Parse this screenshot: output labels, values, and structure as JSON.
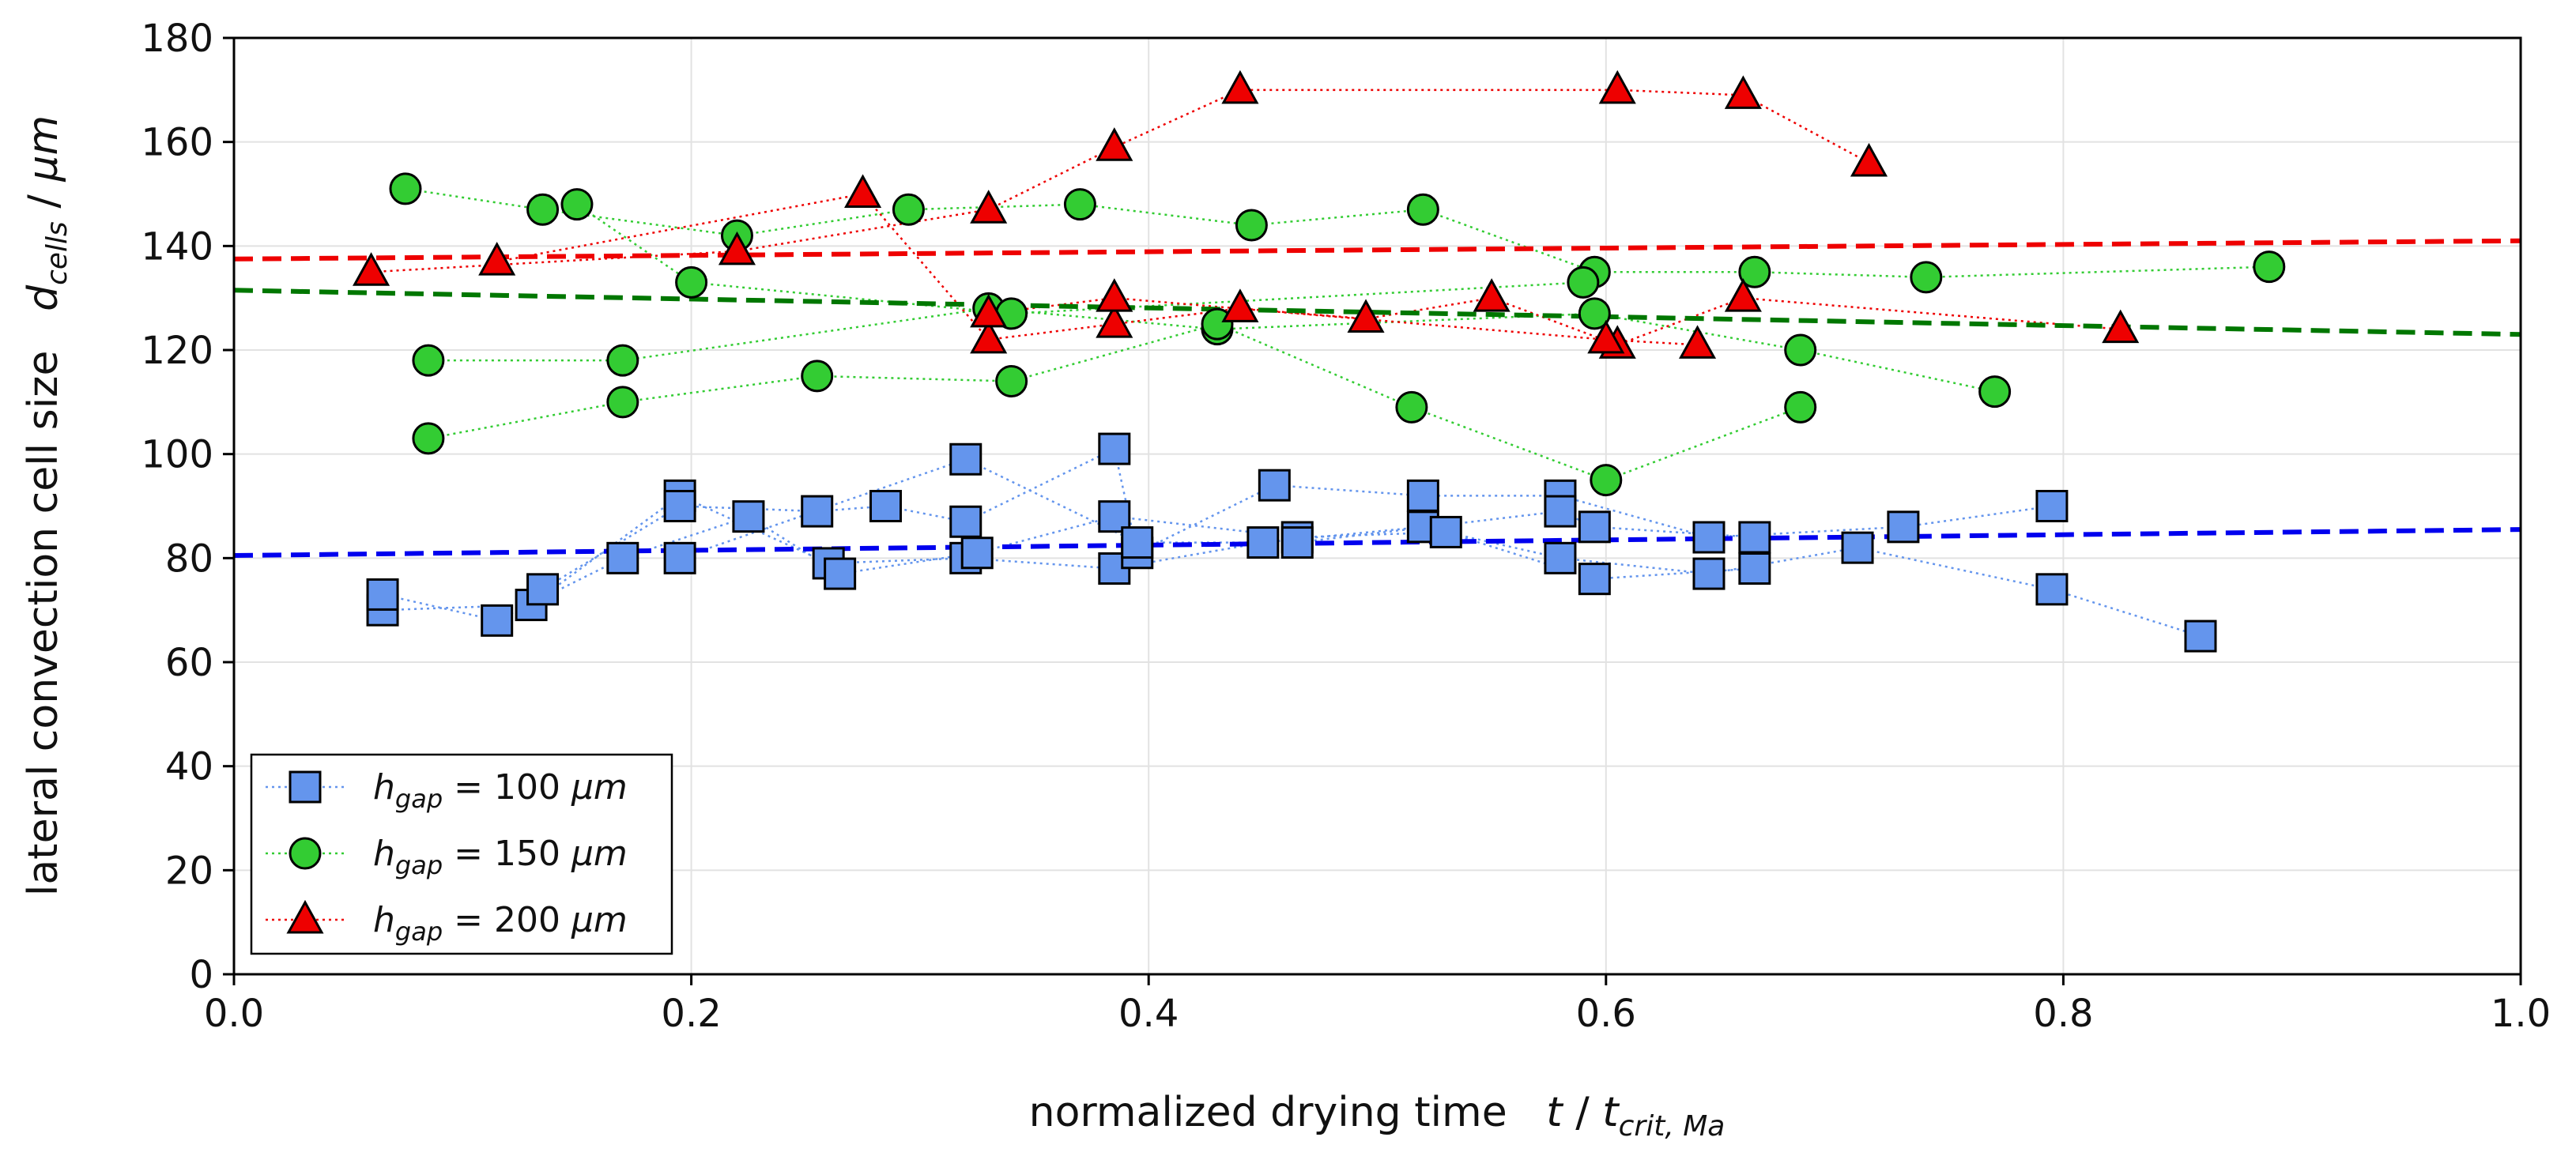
{
  "chart_data": {
    "type": "scatter",
    "xlabel": {
      "main": "normalized drying time",
      "var": "t",
      "sep": " / ",
      "sub_base": "t",
      "sub": "crit, Ma"
    },
    "ylabel": {
      "main": "lateral convection cell size",
      "var": "d",
      "sub": "cells",
      "sep": " / ",
      "unit": "μm"
    },
    "xlim": [
      0,
      1
    ],
    "ylim": [
      0,
      180
    ],
    "xticks": [
      0,
      0.2,
      0.4,
      0.6,
      0.8,
      1.0
    ],
    "xtick_labels": [
      "0.0",
      "0.2",
      "0.4",
      "0.6",
      "0.8",
      "1.0"
    ],
    "yticks": [
      0,
      20,
      40,
      60,
      80,
      100,
      120,
      140,
      160,
      180
    ],
    "ytick_labels": [
      "0",
      "20",
      "40",
      "60",
      "80",
      "100",
      "120",
      "140",
      "160",
      "180"
    ],
    "grid": true,
    "legend_position": "lower-left",
    "series": [
      {
        "name": "h_gap = 100 μm",
        "label_var": "h",
        "label_sub": "gap",
        "label_rest": " = 100 ",
        "label_unit": "μm",
        "marker": "square",
        "color": "#6495ED",
        "points": [
          [
            0.065,
            70
          ],
          [
            0.13,
            71
          ],
          [
            0.195,
            92
          ],
          [
            0.26,
            79
          ],
          [
            0.32,
            80
          ],
          [
            0.385,
            78
          ],
          [
            0.45,
            83
          ],
          [
            0.52,
            86
          ],
          [
            0.58,
            80
          ],
          [
            0.645,
            77
          ],
          [
            0.71,
            82
          ],
          [
            0.795,
            74
          ],
          [
            0.86,
            65
          ],
          [
            0.065,
            73
          ],
          [
            0.115,
            68
          ],
          [
            0.17,
            80
          ],
          [
            0.225,
            88
          ],
          [
            0.265,
            77
          ],
          [
            0.325,
            81
          ],
          [
            0.385,
            88
          ],
          [
            0.465,
            84
          ],
          [
            0.53,
            85
          ],
          [
            0.595,
            76
          ],
          [
            0.665,
            78
          ],
          [
            0.135,
            74
          ],
          [
            0.195,
            90
          ],
          [
            0.255,
            89
          ],
          [
            0.285,
            90
          ],
          [
            0.32,
            87
          ],
          [
            0.385,
            101
          ],
          [
            0.395,
            81
          ],
          [
            0.455,
            94
          ],
          [
            0.52,
            92
          ],
          [
            0.58,
            92
          ],
          [
            0.645,
            84
          ],
          [
            0.73,
            86
          ],
          [
            0.795,
            90
          ],
          [
            0.195,
            80
          ],
          [
            0.32,
            99
          ],
          [
            0.395,
            83
          ],
          [
            0.465,
            83
          ],
          [
            0.58,
            89
          ],
          [
            0.595,
            86
          ],
          [
            0.665,
            84
          ]
        ],
        "paths": [
          [
            0,
            1,
            2,
            3,
            4,
            5,
            6,
            7,
            8,
            9,
            10,
            11,
            12
          ],
          [
            13,
            14,
            15,
            16,
            17,
            18,
            19,
            20,
            21,
            22,
            23
          ],
          [
            24,
            25,
            26,
            27,
            28,
            29,
            30,
            31,
            32,
            33,
            34,
            35,
            36
          ],
          [
            37,
            38,
            39,
            40,
            41,
            42,
            43
          ]
        ],
        "trend": {
          "x": [
            0,
            1
          ],
          "y": [
            80.5,
            85.5
          ],
          "color": "#0000EE"
        }
      },
      {
        "name": "h_gap = 150 μm",
        "label_var": "h",
        "label_sub": "gap",
        "label_rest": " = 150 ",
        "label_unit": "μm",
        "marker": "circle",
        "color": "#33CC33",
        "points": [
          [
            0.075,
            151
          ],
          [
            0.135,
            147
          ],
          [
            0.22,
            142
          ],
          [
            0.295,
            147
          ],
          [
            0.37,
            148
          ],
          [
            0.445,
            144
          ],
          [
            0.52,
            147
          ],
          [
            0.595,
            135
          ],
          [
            0.665,
            135
          ],
          [
            0.74,
            134
          ],
          [
            0.89,
            136
          ],
          [
            0.085,
            118
          ],
          [
            0.17,
            118
          ],
          [
            0.33,
            128
          ],
          [
            0.43,
            124
          ],
          [
            0.595,
            127
          ],
          [
            0.685,
            120
          ],
          [
            0.77,
            112
          ],
          [
            0.085,
            103
          ],
          [
            0.17,
            110
          ],
          [
            0.255,
            115
          ],
          [
            0.34,
            114
          ],
          [
            0.43,
            125
          ],
          [
            0.515,
            109
          ],
          [
            0.6,
            95
          ],
          [
            0.685,
            109
          ],
          [
            0.15,
            148
          ],
          [
            0.2,
            133
          ],
          [
            0.34,
            127
          ],
          [
            0.59,
            133
          ]
        ],
        "paths": [
          [
            0,
            1,
            2,
            3,
            4,
            5,
            6,
            7,
            8,
            9,
            10
          ],
          [
            11,
            12,
            13,
            14,
            15,
            16,
            17
          ],
          [
            18,
            19,
            20,
            21,
            22,
            23,
            24,
            25
          ],
          [
            26,
            27,
            28,
            29
          ]
        ],
        "trend": {
          "x": [
            0,
            1
          ],
          "y": [
            131.5,
            123
          ],
          "color": "#007700"
        }
      },
      {
        "name": "h_gap = 200 μm",
        "label_var": "h",
        "label_sub": "gap",
        "label_rest": " = 200 ",
        "label_unit": "μm",
        "marker": "triangle",
        "color": "#EE0000",
        "points": [
          [
            0.06,
            135
          ],
          [
            0.22,
            139
          ],
          [
            0.33,
            147
          ],
          [
            0.385,
            159
          ],
          [
            0.44,
            170
          ],
          [
            0.605,
            170
          ],
          [
            0.66,
            169
          ],
          [
            0.715,
            156
          ],
          [
            0.115,
            137
          ],
          [
            0.275,
            150
          ],
          [
            0.33,
            122
          ],
          [
            0.385,
            125
          ],
          [
            0.44,
            128
          ],
          [
            0.495,
            126
          ],
          [
            0.55,
            130
          ],
          [
            0.605,
            121
          ],
          [
            0.66,
            130
          ],
          [
            0.825,
            124
          ],
          [
            0.33,
            127
          ],
          [
            0.385,
            130
          ],
          [
            0.6,
            122
          ],
          [
            0.64,
            121
          ]
        ],
        "paths": [
          [
            0,
            1,
            2,
            3,
            4,
            5,
            6,
            7
          ],
          [
            8,
            9,
            10,
            11,
            12,
            13,
            14,
            15,
            16,
            17
          ],
          [
            18,
            19,
            20,
            21
          ]
        ],
        "trend": {
          "x": [
            0,
            1
          ],
          "y": [
            137.5,
            141
          ],
          "color": "#EE0000"
        }
      }
    ]
  }
}
